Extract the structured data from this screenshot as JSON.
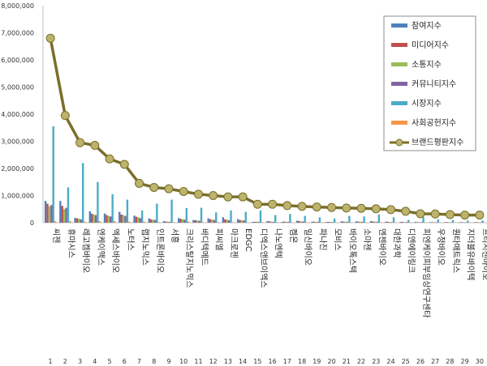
{
  "chart_data": {
    "type": "bar",
    "y_ticks": [
      "8,000,000",
      "7,000,000",
      "6,000,000",
      "5,000,000",
      "4,000,000",
      "3,000,000",
      "2,000,000",
      "1,000,000",
      "0"
    ],
    "ylim": [
      0,
      8000000
    ],
    "numbers": [
      "1",
      "2",
      "3",
      "4",
      "5",
      "6",
      "7",
      "8",
      "9",
      "10",
      "11",
      "12",
      "13",
      "14",
      "15",
      "16",
      "17",
      "18",
      "19",
      "20",
      "21",
      "22",
      "23",
      "24",
      "25",
      "26",
      "27",
      "28",
      "29",
      "30"
    ],
    "categories": [
      "씨젠",
      "휴마시스",
      "레고켐바이오",
      "엔케이맥스",
      "엑세스바이오",
      "노터스",
      "랩지노믹스",
      "인트론바이오",
      "서흥",
      "크리스탈지노믹스",
      "바디텍메드",
      "피씨엘",
      "마크로젠",
      "EDGC",
      "디엑스앤브이엑스",
      "나노엔텍",
      "켐온",
      "일신바이오",
      "파나진",
      "모비스",
      "바이오톡스텍",
      "소마젠",
      "엔젠바이오",
      "대한과학",
      "디엔에이링크",
      "피엔케이피부임상연구센타",
      "우정바이오",
      "퀀타매트릭스",
      "지더블유바이텍",
      "프리시젠바이오"
    ],
    "series": [
      {
        "name": "참여지수",
        "color": "#4f81bd",
        "values": [
          800000,
          800000,
          180000,
          420000,
          340000,
          400000,
          260000,
          160000,
          60000,
          170000,
          100000,
          160000,
          200000,
          130000,
          30000,
          60000,
          30000,
          70000,
          30000,
          30000,
          50000,
          50000,
          60000,
          40000,
          30000,
          30000,
          20000,
          20000,
          20000,
          20000
        ]
      },
      {
        "name": "미디어지수",
        "color": "#c0504d",
        "values": [
          700000,
          620000,
          160000,
          330000,
          280000,
          300000,
          220000,
          120000,
          40000,
          140000,
          90000,
          130000,
          120000,
          100000,
          30000,
          50000,
          40000,
          60000,
          40000,
          30000,
          40000,
          40000,
          40000,
          30000,
          30000,
          20000,
          20000,
          20000,
          20000,
          20000
        ]
      },
      {
        "name": "소통지수",
        "color": "#9bbb59",
        "values": [
          600000,
          500000,
          150000,
          300000,
          250000,
          280000,
          200000,
          110000,
          40000,
          130000,
          80000,
          110000,
          110000,
          90000,
          40000,
          40000,
          30000,
          50000,
          30000,
          30000,
          40000,
          40000,
          40000,
          30000,
          20000,
          20000,
          20000,
          20000,
          20000,
          20000
        ]
      },
      {
        "name": "커뮤니티지수",
        "color": "#8064a2",
        "values": [
          650000,
          550000,
          120000,
          280000,
          230000,
          250000,
          170000,
          100000,
          30000,
          110000,
          70000,
          100000,
          90000,
          80000,
          30000,
          30000,
          30000,
          40000,
          30000,
          20000,
          30000,
          30000,
          30000,
          20000,
          20000,
          20000,
          10000,
          10000,
          10000,
          10000
        ]
      },
      {
        "name": "시장지수",
        "color": "#4bacc6",
        "values": [
          3550000,
          1300000,
          2200000,
          1500000,
          1050000,
          850000,
          450000,
          700000,
          850000,
          540000,
          550000,
          380000,
          450000,
          400000,
          450000,
          280000,
          320000,
          250000,
          200000,
          150000,
          250000,
          230000,
          300000,
          200000,
          100000,
          200000,
          120000,
          100000,
          80000,
          80000
        ]
      },
      {
        "name": "사회공헌지수",
        "color": "#f79646",
        "values": [
          60000,
          60000,
          40000,
          60000,
          60000,
          40000,
          40000,
          20000,
          20000,
          40000,
          20000,
          20000,
          20000,
          20000,
          20000,
          20000,
          10000,
          20000,
          10000,
          10000,
          10000,
          10000,
          10000,
          10000,
          10000,
          10000,
          10000,
          10000,
          10000,
          10000
        ]
      }
    ],
    "line": {
      "name": "브랜드평판지수",
      "color": "#7a6e2a",
      "marker_color": "#bcb36c",
      "values": [
        6800000,
        3950000,
        2950000,
        2850000,
        2350000,
        2150000,
        1450000,
        1300000,
        1250000,
        1150000,
        1050000,
        1000000,
        950000,
        950000,
        680000,
        680000,
        630000,
        600000,
        580000,
        560000,
        540000,
        530000,
        510000,
        480000,
        420000,
        330000,
        320000,
        300000,
        280000,
        280000
      ]
    },
    "legend_position": "top-right",
    "grid": false
  }
}
